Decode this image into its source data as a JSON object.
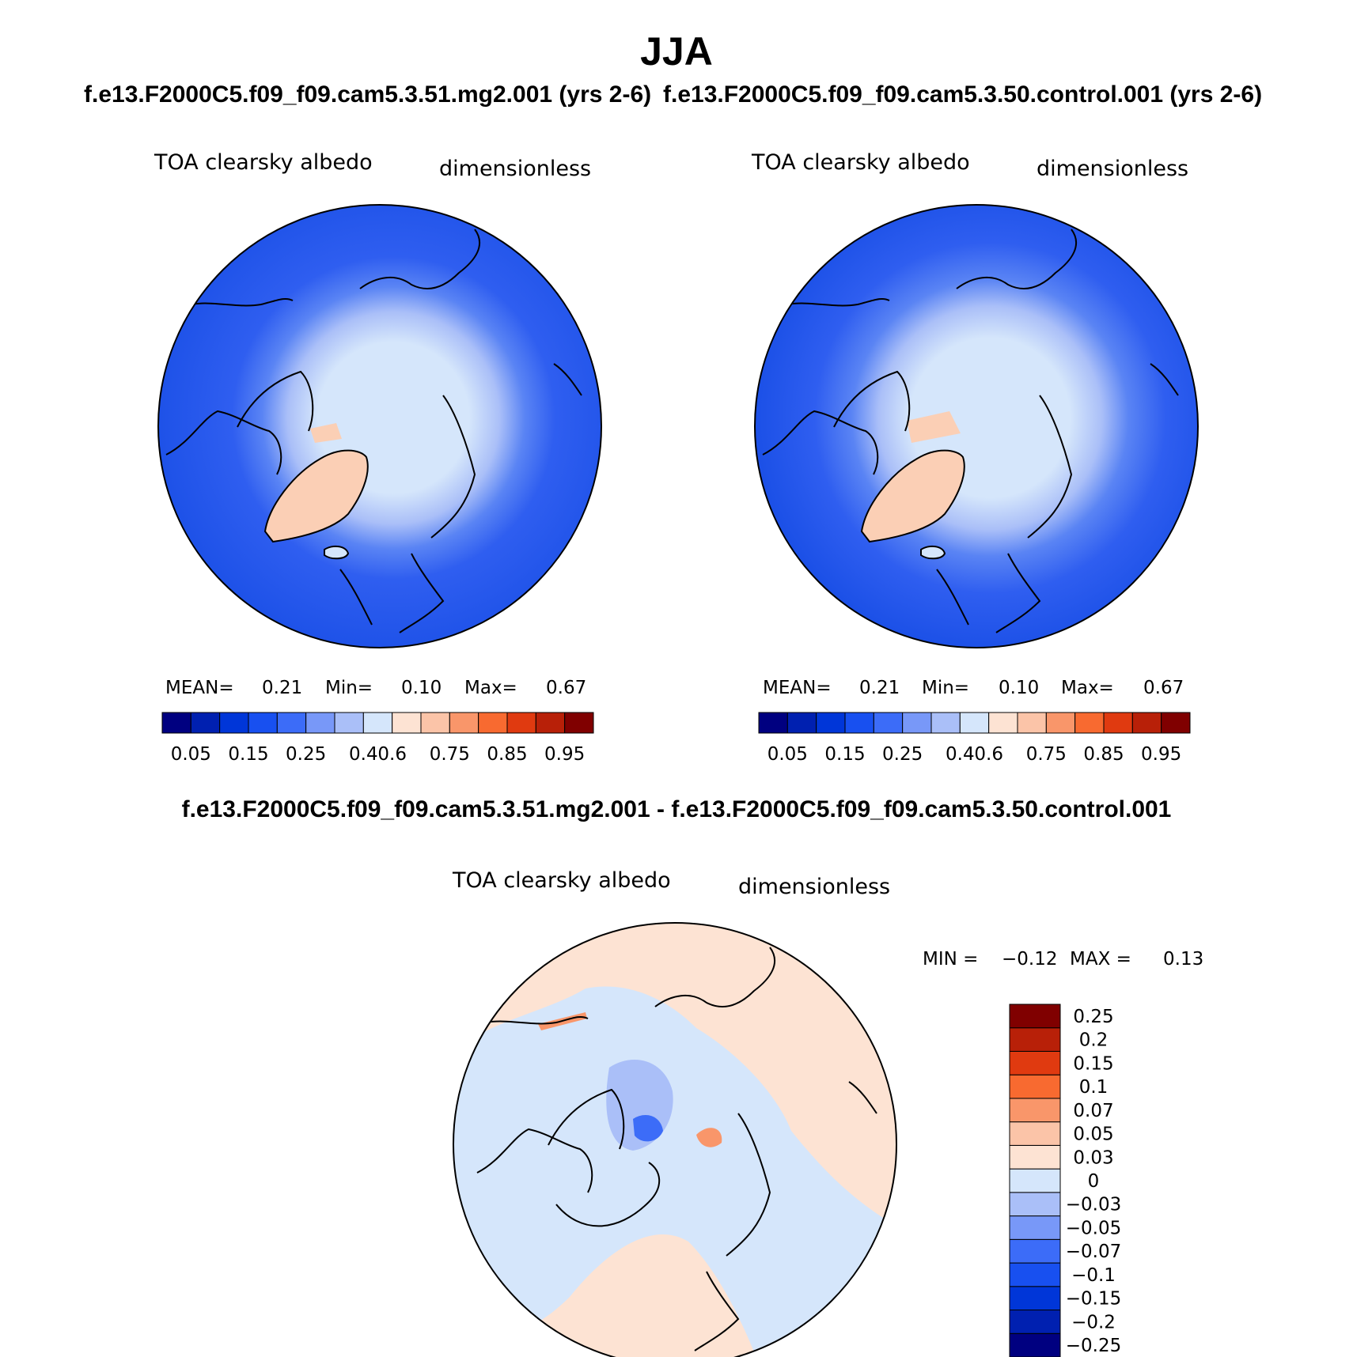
{
  "title": "JJA",
  "panels": {
    "left": {
      "subtitle": "f.e13.F2000C5.f09_f09.cam5.3.51.mg2.001 (yrs 2-6)",
      "variable": "TOA clearsky albedo",
      "units": "dimensionless",
      "mean_label": "MEAN=",
      "mean": "0.21",
      "min_label": "Min=",
      "min": "0.10",
      "max_label": "Max=",
      "max": "0.67"
    },
    "right": {
      "subtitle": "f.e13.F2000C5.f09_f09.cam5.3.50.control.001 (yrs 2-6)",
      "variable": "TOA clearsky albedo",
      "units": "dimensionless",
      "mean_label": "MEAN=",
      "mean": "0.21",
      "min_label": "Min=",
      "min": "0.10",
      "max_label": "Max=",
      "max": "0.67"
    },
    "diff": {
      "title": "f.e13.F2000C5.f09_f09.cam5.3.51.mg2.001 - f.e13.F2000C5.f09_f09.cam5.3.50.control.001",
      "variable": "TOA clearsky albedo",
      "units": "dimensionless",
      "min_label": "MIN =",
      "min": "−0.12",
      "max_label": "MAX =",
      "max": "0.13"
    }
  },
  "colorbar_abs": {
    "colors": [
      "#000080",
      "#0020b0",
      "#0036d8",
      "#1850f0",
      "#3c6cf8",
      "#7898f8",
      "#aabff8",
      "#d5e6fb",
      "#fde3d3",
      "#fbc4a8",
      "#f9966a",
      "#f86a30",
      "#e03a10",
      "#b82008",
      "#800000"
    ],
    "tick_labels": [
      "0.05",
      "0.15",
      "0.25",
      "0.4",
      "0.6",
      "0.75",
      "0.85",
      "0.95"
    ]
  },
  "colorbar_diff": {
    "colors": [
      "#000080",
      "#0020b0",
      "#0036d8",
      "#1850f0",
      "#3c6cf8",
      "#7898f8",
      "#aabff8",
      "#d5e6fb",
      "#fde3d3",
      "#fbc4a8",
      "#f9966a",
      "#f86a30",
      "#e03a10",
      "#b82008",
      "#800000"
    ],
    "tick_labels": [
      "0.25",
      "0.2",
      "0.15",
      "0.1",
      "0.07",
      "0.05",
      "0.03",
      "0",
      "−0.03",
      "−0.05",
      "−0.07",
      "−0.1",
      "−0.15",
      "−0.2",
      "−0.25"
    ]
  },
  "colors": {
    "ocean_abs": "#1a4fe6",
    "ice_light": "#d5e6fb",
    "ice_mid": "#aabff8",
    "greenland_abs": "#fbcfb5",
    "diff_pos": "#fde3d3",
    "diff_neg": "#d5e6fb",
    "coast": "#000000"
  }
}
